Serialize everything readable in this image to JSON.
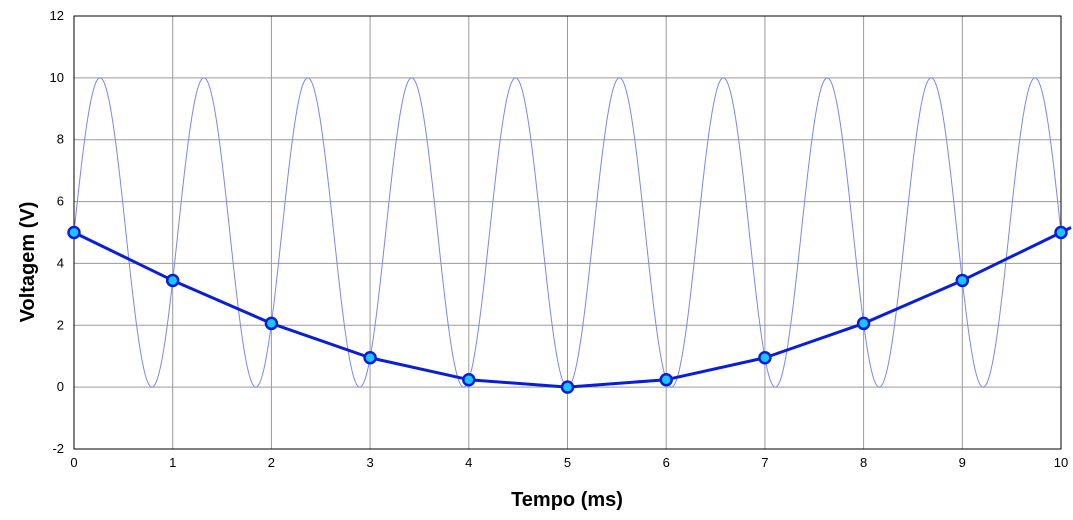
{
  "chart_data": {
    "type": "line",
    "title": "",
    "xlabel": "Tempo (ms)",
    "ylabel": "Voltagem (V)",
    "xlim": [
      0,
      10
    ],
    "ylim": [
      -2,
      12
    ],
    "xticks": [
      0,
      1,
      2,
      3,
      4,
      5,
      6,
      7,
      8,
      9,
      10
    ],
    "yticks": [
      -2,
      0,
      2,
      4,
      6,
      8,
      10,
      12
    ],
    "grid": true,
    "legend": "none",
    "series": [
      {
        "kind": "continuous-sine",
        "color": "#7b86f0",
        "amplitude": 5,
        "offset": 5,
        "frequency_khz": 0.95,
        "phase_at_x0": "rising through 5 V",
        "markers": false
      },
      {
        "kind": "sampled",
        "color": "#0a1ed8",
        "marker_fill": "#1ac6ff",
        "markers": true,
        "x": [
          0,
          1,
          2,
          3,
          4,
          5,
          6,
          7,
          8,
          9,
          10
        ],
        "y": [
          5,
          3.45,
          2.06,
          0.95,
          0.24,
          0.0,
          0.24,
          0.95,
          2.06,
          3.45,
          5.0
        ]
      }
    ]
  }
}
